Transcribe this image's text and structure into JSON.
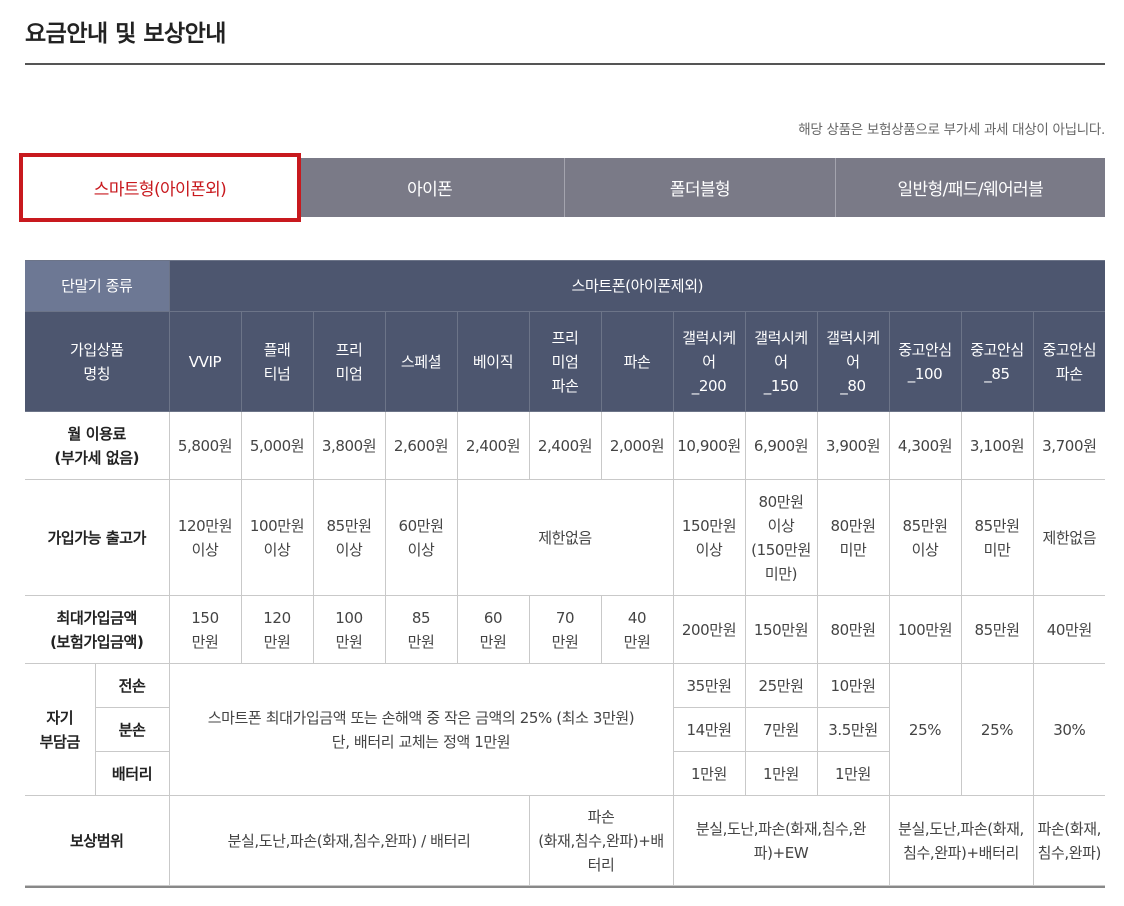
{
  "page": {
    "title": "요금안내 및 보상안내",
    "notice": "해당 상품은 보험상품으로 부가세 과세 대상이 아닙니다."
  },
  "tabs": [
    {
      "label": "스마트형(아이폰외)",
      "active": true
    },
    {
      "label": "아이폰",
      "active": false
    },
    {
      "label": "폴더블형",
      "active": false
    },
    {
      "label": "일반형/패드/웨어러블",
      "active": false
    }
  ],
  "colors": {
    "accent": "#c8191e",
    "header_bg": "#4d566f",
    "tab_bg": "#7a7a87"
  },
  "table": {
    "device_type_label": "단말기 종류",
    "device_type_value": "스마트폰(아이폰제외)",
    "product_name_label": "가입상품\n명칭",
    "products": [
      "VVIP",
      "플래\n티넘",
      "프리\n미엄",
      "스페셜",
      "베이직",
      "프리\n미엄\n파손",
      "파손",
      "갤럭시케\n어\n_200",
      "갤럭시케\n어\n_150",
      "갤럭시케\n어\n_80",
      "중고안심\n_100",
      "중고안심\n_85",
      "중고안심\n파손"
    ],
    "monthly_fee_label": "월 이용료\n(부가세 없음)",
    "monthly_fees": [
      "5,800원",
      "5,000원",
      "3,800원",
      "2,600원",
      "2,400원",
      "2,400원",
      "2,000원",
      "10,900원",
      "6,900원",
      "3,900원",
      "4,300원",
      "3,100원",
      "3,700원"
    ],
    "release_price_label": "가입가능 출고가",
    "release_prices": [
      "120만원\n이상",
      "100만원\n이상",
      "85만원\n이상",
      "60만원\n이상",
      "제한없음",
      "150만원\n이상",
      "80만원\n이상\n(150만원\n미만)",
      "80만원\n미만",
      "85만원\n이상",
      "85만원\n미만",
      "제한없음"
    ],
    "max_amount_label": "최대가입금액\n(보험가입금액)",
    "max_amounts": [
      "150\n만원",
      "120\n만원",
      "100\n만원",
      "85\n만원",
      "60\n만원",
      "70\n만원",
      "40\n만원",
      "200만원",
      "150만원",
      "80만원",
      "100만원",
      "85만원",
      "40만원"
    ],
    "deductible_label": "자기\n부담금",
    "deductible_sub": [
      "전손",
      "분손",
      "배터리"
    ],
    "deductible_note": "스마트폰  최대가입금액 또는 손해액 중 작은 금액의 25% (최소 3만원)\n단, 배터리 교체는 정액 1만원",
    "deductible_total": [
      "35만원",
      "25만원",
      "10만원"
    ],
    "deductible_partial": [
      "14만원",
      "7만원",
      "3.5만원"
    ],
    "deductible_battery": [
      "1만원",
      "1만원",
      "1만원"
    ],
    "deductible_used": [
      "25%",
      "25%",
      "30%"
    ],
    "coverage_label": "보상범위",
    "coverage": [
      "분실,도난,파손(화재,침수,완파) / 배터리",
      "파손\n(화재,침수,완파)+배\n터리",
      "분실,도난,파손(화재,침수,완\n파)+EW",
      "분실,도난,파손(화재,\n침수,완파)+배터리",
      "파손(화재,\n침수,완파)"
    ]
  }
}
